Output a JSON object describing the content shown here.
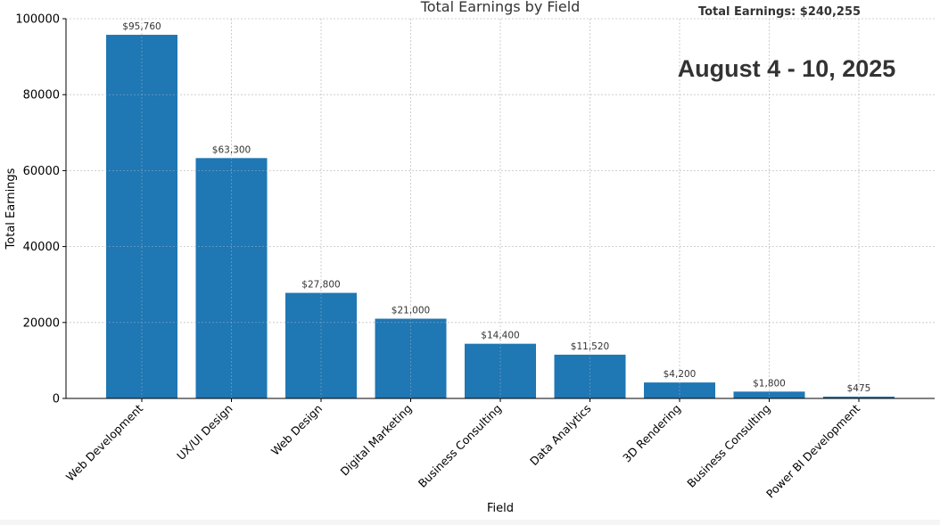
{
  "chart_data": {
    "type": "bar",
    "title": "Total Earnings by Field",
    "total_label": "Total Earnings: $240,255",
    "date_range": "August 4 - 10, 2025",
    "xlabel": "Field",
    "ylabel": "Total Earnings",
    "ylim": [
      0,
      100000
    ],
    "yticks": [
      0,
      20000,
      40000,
      60000,
      80000,
      100000
    ],
    "ytick_labels": [
      "0",
      "20000",
      "40000",
      "60000",
      "80000",
      "100000"
    ],
    "grid": true,
    "bar_color": "#1f77b4",
    "categories": [
      "Web Development",
      "UX/UI Design",
      "Web Design",
      "Digital Marketing",
      "Business Consulting",
      "Data Analytics",
      "3D Rendering",
      "Business Consulting",
      "Power BI Development"
    ],
    "values": [
      95760,
      63300,
      27800,
      21000,
      14400,
      11520,
      4200,
      1800,
      475
    ],
    "value_labels": [
      "$95,760",
      "$63,300",
      "$27,800",
      "$21,000",
      "$14,400",
      "$11,520",
      "$4,200",
      "$1,800",
      "$475"
    ]
  }
}
